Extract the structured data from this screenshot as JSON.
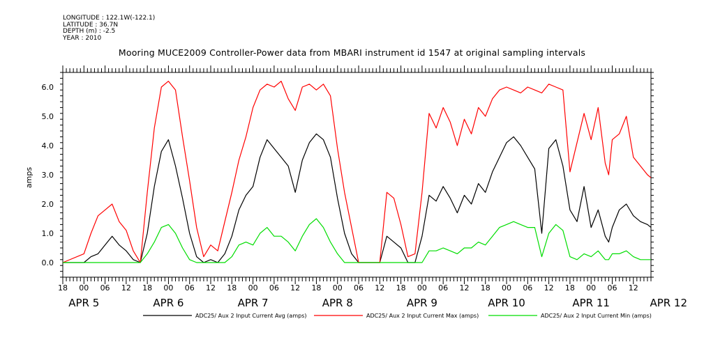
{
  "header": {
    "longitude": "LONGITUDE : 122.1W(-122.1)",
    "latitude": "LATITUDE : 36.7N",
    "depth": "DEPTH (m) : -2.5",
    "year": "YEAR : 2010"
  },
  "chart_data": {
    "type": "line",
    "title": "Mooring MUCE2009 Controller-Power data from MBARI instrument id 1547 at original sampling intervals",
    "ylabel": "amps",
    "ylim": [
      -0.5,
      6.5
    ],
    "y_ticks": [
      0,
      1,
      2,
      3,
      4,
      5,
      6
    ],
    "y_tick_labels": [
      "0.0",
      "1.0",
      "2.0",
      "3.0",
      "4.0",
      "5.0",
      "6.0"
    ],
    "x_unit": "hours since 2010-04-04 18:00",
    "xlim": [
      0,
      167
    ],
    "x_ticks": [
      0,
      6,
      12,
      18,
      24,
      30,
      36,
      42,
      48,
      54,
      60,
      66,
      72,
      78,
      84,
      90,
      96,
      102,
      108,
      114,
      120,
      126,
      132,
      138,
      144,
      150,
      156,
      162
    ],
    "x_tick_labels": [
      "18",
      "00",
      "06",
      "12",
      "18",
      "00",
      "06",
      "12",
      "18",
      "00",
      "06",
      "12",
      "18",
      "00",
      "06",
      "12",
      "18",
      "00",
      "06",
      "12",
      "18",
      "00",
      "06",
      "12",
      "18",
      "00",
      "06",
      "12"
    ],
    "date_labels": [
      {
        "x": 6,
        "text": "APR  5"
      },
      {
        "x": 30,
        "text": "APR  6"
      },
      {
        "x": 54,
        "text": "APR  7"
      },
      {
        "x": 78,
        "text": "APR  8"
      },
      {
        "x": 102,
        "text": "APR  9"
      },
      {
        "x": 126,
        "text": "APR 10"
      },
      {
        "x": 150,
        "text": "APR 11"
      },
      {
        "x": 172,
        "text": "APR 12"
      }
    ],
    "grid": false,
    "legend_position": "bottom",
    "series": [
      {
        "name": "ADC25/ Aux 2 Input Current Avg (amps)",
        "color": "#000000",
        "x": [
          0,
          6,
          8,
          10,
          12,
          14,
          16,
          18,
          20,
          22,
          24,
          26,
          28,
          30,
          32,
          34,
          36,
          38,
          40,
          42,
          44,
          46,
          48,
          50,
          52,
          54,
          56,
          58,
          60,
          62,
          64,
          66,
          68,
          70,
          72,
          74,
          76,
          78,
          80,
          82,
          84,
          86,
          88,
          90,
          92,
          94,
          96,
          98,
          100,
          102,
          104,
          106,
          108,
          110,
          112,
          114,
          116,
          118,
          120,
          122,
          124,
          126,
          128,
          130,
          132,
          134,
          136,
          138,
          140,
          142,
          144,
          146,
          148,
          150,
          152,
          154,
          155,
          156,
          158,
          160,
          162,
          164,
          166,
          167
        ],
        "y": [
          0.0,
          0.0,
          0.2,
          0.3,
          0.6,
          0.9,
          0.6,
          0.4,
          0.1,
          0.0,
          1.0,
          2.6,
          3.8,
          4.2,
          3.3,
          2.2,
          1.0,
          0.2,
          0.0,
          0.1,
          0.0,
          0.3,
          0.9,
          1.8,
          2.3,
          2.6,
          3.6,
          4.2,
          3.9,
          3.6,
          3.3,
          2.4,
          3.5,
          4.1,
          4.4,
          4.2,
          3.6,
          2.2,
          1.0,
          0.3,
          0.0,
          0.0,
          0.0,
          0.0,
          0.9,
          0.7,
          0.5,
          0.0,
          0.0,
          0.9,
          2.3,
          2.1,
          2.6,
          2.2,
          1.7,
          2.3,
          2.0,
          2.7,
          2.4,
          3.1,
          3.6,
          4.1,
          4.3,
          4.0,
          3.6,
          3.2,
          1.0,
          3.9,
          4.2,
          3.3,
          1.8,
          1.4,
          2.6,
          1.2,
          1.8,
          0.9,
          0.7,
          1.2,
          1.8,
          2.0,
          1.6,
          1.4,
          1.3,
          1.2
        ]
      },
      {
        "name": "ADC25/ Aux 2 Input Current Max (amps)",
        "color": "#ff0000",
        "x": [
          0,
          6,
          8,
          10,
          12,
          14,
          16,
          18,
          20,
          22,
          24,
          26,
          28,
          30,
          32,
          34,
          36,
          38,
          40,
          42,
          44,
          46,
          48,
          50,
          52,
          54,
          56,
          58,
          60,
          62,
          64,
          66,
          68,
          70,
          72,
          74,
          76,
          78,
          80,
          82,
          84,
          86,
          88,
          90,
          92,
          94,
          96,
          98,
          100,
          102,
          104,
          106,
          108,
          110,
          112,
          114,
          116,
          118,
          120,
          122,
          124,
          126,
          128,
          130,
          132,
          134,
          136,
          138,
          140,
          142,
          144,
          146,
          148,
          150,
          152,
          154,
          155,
          156,
          158,
          160,
          162,
          164,
          166,
          167
        ],
        "y": [
          0.0,
          0.3,
          1.0,
          1.6,
          1.8,
          2.0,
          1.4,
          1.1,
          0.4,
          0.0,
          2.4,
          4.6,
          6.0,
          6.2,
          5.9,
          4.3,
          2.8,
          1.2,
          0.2,
          0.6,
          0.4,
          1.4,
          2.4,
          3.5,
          4.3,
          5.3,
          5.9,
          6.1,
          6.0,
          6.2,
          5.6,
          5.2,
          6.0,
          6.1,
          5.9,
          6.1,
          5.7,
          3.9,
          2.4,
          1.2,
          0.0,
          0.0,
          0.0,
          0.0,
          2.4,
          2.2,
          1.3,
          0.2,
          0.3,
          2.4,
          5.1,
          4.6,
          5.3,
          4.8,
          4.0,
          4.9,
          4.4,
          5.3,
          5.0,
          5.6,
          5.9,
          6.0,
          5.9,
          5.8,
          6.0,
          5.9,
          5.8,
          6.1,
          6.0,
          5.9,
          3.1,
          4.1,
          5.1,
          4.2,
          5.3,
          3.4,
          3.0,
          4.2,
          4.4,
          5.0,
          3.6,
          3.3,
          3.0,
          2.9
        ]
      },
      {
        "name": "ADC25/ Aux 2 Input Current Min (amps)",
        "color": "#00dd00",
        "x": [
          0,
          6,
          8,
          10,
          12,
          14,
          16,
          18,
          20,
          22,
          24,
          26,
          28,
          30,
          32,
          34,
          36,
          38,
          40,
          42,
          44,
          46,
          48,
          50,
          52,
          54,
          56,
          58,
          60,
          62,
          64,
          66,
          68,
          70,
          72,
          74,
          76,
          78,
          80,
          82,
          84,
          86,
          88,
          90,
          92,
          94,
          96,
          98,
          100,
          102,
          104,
          106,
          108,
          110,
          112,
          114,
          116,
          118,
          120,
          122,
          124,
          126,
          128,
          130,
          132,
          134,
          136,
          138,
          140,
          142,
          144,
          146,
          148,
          150,
          152,
          154,
          155,
          156,
          158,
          160,
          162,
          164,
          166,
          167
        ],
        "y": [
          0.0,
          0.0,
          0.0,
          0.0,
          0.0,
          0.0,
          0.0,
          0.0,
          0.0,
          0.0,
          0.3,
          0.7,
          1.2,
          1.3,
          1.0,
          0.5,
          0.1,
          0.0,
          0.0,
          0.0,
          0.0,
          0.0,
          0.2,
          0.6,
          0.7,
          0.6,
          1.0,
          1.2,
          0.9,
          0.9,
          0.7,
          0.4,
          0.9,
          1.3,
          1.5,
          1.2,
          0.7,
          0.3,
          0.0,
          0.0,
          0.0,
          0.0,
          0.0,
          0.0,
          0.0,
          0.0,
          0.0,
          0.0,
          0.0,
          0.0,
          0.4,
          0.4,
          0.5,
          0.4,
          0.3,
          0.5,
          0.5,
          0.7,
          0.6,
          0.9,
          1.2,
          1.3,
          1.4,
          1.3,
          1.2,
          1.2,
          0.2,
          1.0,
          1.3,
          1.1,
          0.2,
          0.1,
          0.3,
          0.2,
          0.4,
          0.1,
          0.1,
          0.3,
          0.3,
          0.4,
          0.2,
          0.1,
          0.1,
          0.1
        ]
      }
    ]
  }
}
